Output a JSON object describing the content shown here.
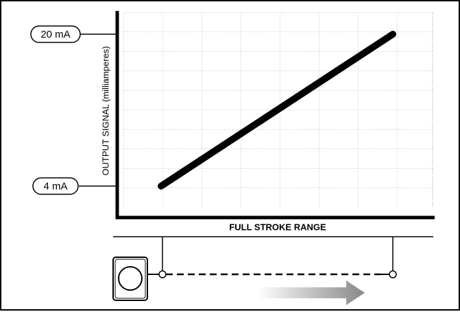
{
  "y_axis_label": "OUTPUT SIGNAL (milliamperes)",
  "x_axis_label": "FULL STROKE RANGE",
  "signal_labels": {
    "high": "20 mA",
    "low": "4 mA"
  }
}
